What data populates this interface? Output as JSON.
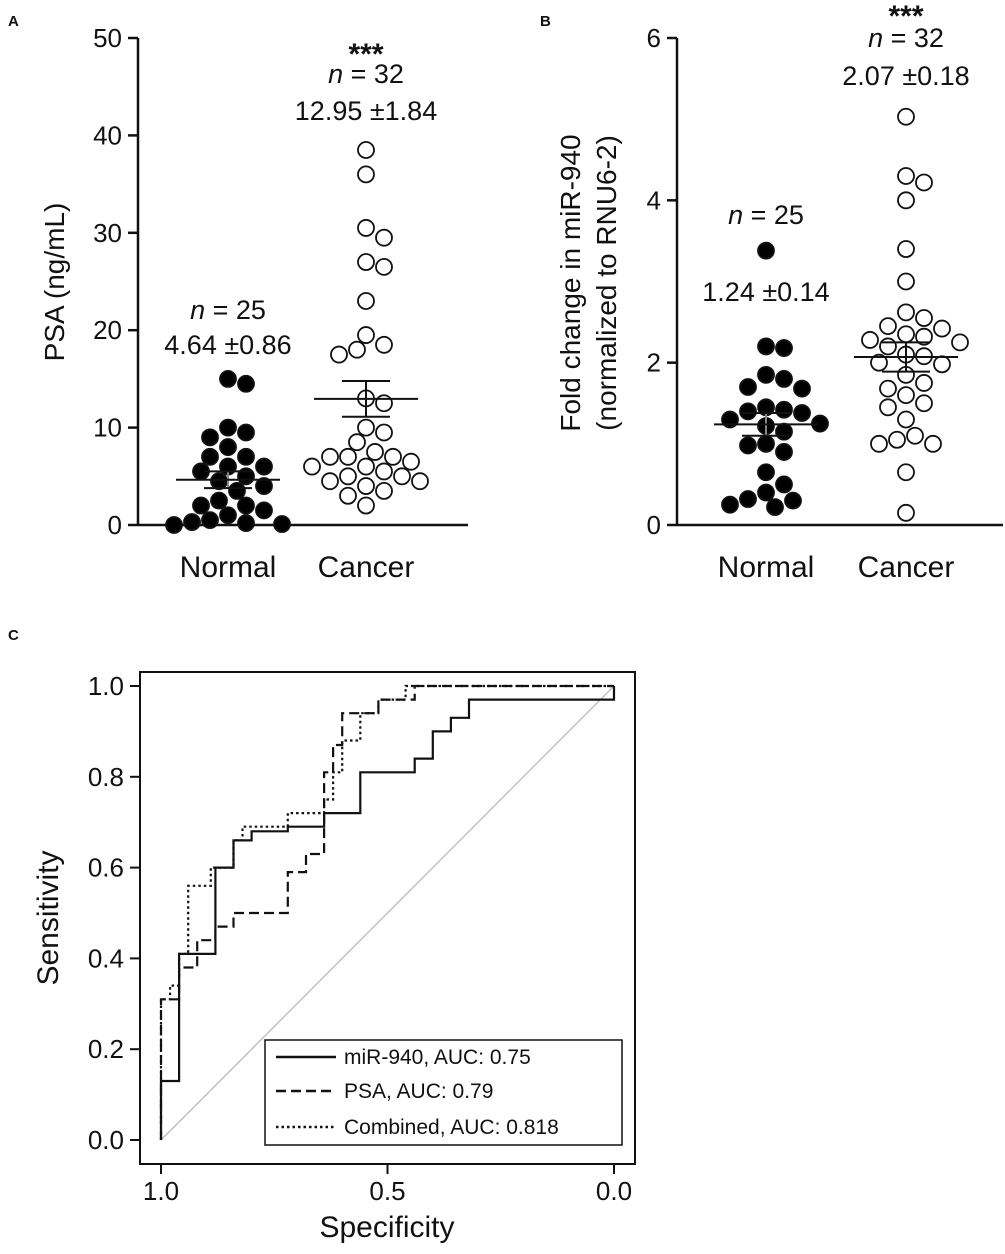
{
  "chart_data": [
    {
      "panel": "A",
      "type": "scatter",
      "ylabel": "PSA (ng/mL)",
      "ylim": [
        0,
        50
      ],
      "yticks": [
        0,
        10,
        20,
        30,
        40,
        50
      ],
      "categories": [
        "Normal",
        "Cancer"
      ],
      "groups": [
        {
          "name": "Normal",
          "n_label": "n",
          "n_rest": " = 25",
          "stat_label": "4.64 ±0.86",
          "mean": 4.64,
          "sem": 0.86,
          "fill": "#000000",
          "values": [
            15.0,
            14.5,
            10.0,
            9.5,
            9.0,
            8.0,
            7.0,
            7.0,
            6.0,
            6.0,
            5.5,
            5.0,
            4.5,
            4.0,
            3.5,
            2.5,
            2.0,
            2.0,
            1.5,
            1.0,
            0.5,
            0.3,
            0.2,
            0.1,
            0.0
          ]
        },
        {
          "name": "Cancer",
          "stars": "***",
          "n_label": "n",
          "n_rest": " = 32",
          "stat_label": "12.95 ±1.84",
          "mean": 12.95,
          "sem": 1.84,
          "fill": "#ffffff",
          "values": [
            38.5,
            36.0,
            30.5,
            29.5,
            27.0,
            26.5,
            23.0,
            19.5,
            18.5,
            18.0,
            17.5,
            13.0,
            12.5,
            10.0,
            9.5,
            8.5,
            7.5,
            7.0,
            7.0,
            7.0,
            6.5,
            6.0,
            6.0,
            5.5,
            5.0,
            5.0,
            4.5,
            4.5,
            4.0,
            3.5,
            3.0,
            2.0
          ]
        }
      ]
    },
    {
      "panel": "B",
      "type": "scatter",
      "ylabel": "Fold change in miR-940",
      "ylabel2": "(normalized to RNU6-2)",
      "ylim": [
        0,
        6
      ],
      "yticks": [
        0,
        2,
        4,
        6
      ],
      "categories": [
        "Normal",
        "Cancer"
      ],
      "groups": [
        {
          "name": "Normal",
          "n_label": "n",
          "n_rest": " = 25",
          "stat_label": "1.24 ±0.14",
          "mean": 1.24,
          "sem": 0.14,
          "fill": "#000000",
          "values": [
            3.38,
            2.2,
            2.18,
            1.85,
            1.8,
            1.7,
            1.68,
            1.45,
            1.42,
            1.4,
            1.38,
            1.3,
            1.25,
            1.22,
            1.15,
            1.0,
            0.98,
            0.9,
            0.65,
            0.5,
            0.4,
            0.32,
            0.3,
            0.25,
            0.22
          ]
        },
        {
          "name": "Cancer",
          "stars": "***",
          "n_label": "n",
          "n_rest": " = 32",
          "stat_label": "2.07 ±0.18",
          "mean": 2.07,
          "sem": 0.18,
          "fill": "#ffffff",
          "values": [
            5.03,
            4.3,
            4.22,
            4.0,
            3.4,
            3.0,
            2.62,
            2.55,
            2.45,
            2.42,
            2.35,
            2.32,
            2.28,
            2.25,
            2.2,
            2.1,
            2.08,
            2.0,
            1.98,
            1.85,
            1.75,
            1.68,
            1.6,
            1.5,
            1.45,
            1.3,
            1.1,
            1.05,
            1.0,
            1.0,
            0.65,
            0.15
          ]
        }
      ]
    },
    {
      "panel": "C",
      "type": "line",
      "xlabel": "Specificity",
      "ylabel": "Sensitivity",
      "xlim": [
        1.0,
        0.0
      ],
      "ylim": [
        0.0,
        1.0
      ],
      "xticks": [
        "1.0",
        "0.5",
        "0.0"
      ],
      "yticks": [
        "0.0",
        "0.2",
        "0.4",
        "0.6",
        "0.8",
        "1.0"
      ],
      "series": [
        {
          "name": "miR-940",
          "legend": "miR-940, AUC: 0.75",
          "auc": 0.75,
          "style": "solid",
          "points": [
            [
              1.0,
              0.0
            ],
            [
              1.0,
              0.13
            ],
            [
              0.96,
              0.13
            ],
            [
              0.96,
              0.41
            ],
            [
              0.88,
              0.41
            ],
            [
              0.88,
              0.6
            ],
            [
              0.84,
              0.6
            ],
            [
              0.84,
              0.66
            ],
            [
              0.8,
              0.66
            ],
            [
              0.8,
              0.68
            ],
            [
              0.72,
              0.68
            ],
            [
              0.72,
              0.69
            ],
            [
              0.64,
              0.69
            ],
            [
              0.64,
              0.72
            ],
            [
              0.56,
              0.72
            ],
            [
              0.56,
              0.81
            ],
            [
              0.44,
              0.81
            ],
            [
              0.44,
              0.84
            ],
            [
              0.4,
              0.84
            ],
            [
              0.4,
              0.9
            ],
            [
              0.36,
              0.9
            ],
            [
              0.36,
              0.93
            ],
            [
              0.32,
              0.93
            ],
            [
              0.32,
              0.97
            ],
            [
              0.0,
              0.97
            ],
            [
              0.0,
              1.0
            ]
          ]
        },
        {
          "name": "PSA",
          "legend": "PSA, AUC: 0.79",
          "auc": 0.79,
          "style": "dashed",
          "points": [
            [
              1.0,
              0.0
            ],
            [
              1.0,
              0.31
            ],
            [
              0.96,
              0.31
            ],
            [
              0.96,
              0.38
            ],
            [
              0.92,
              0.38
            ],
            [
              0.92,
              0.44
            ],
            [
              0.88,
              0.44
            ],
            [
              0.88,
              0.47
            ],
            [
              0.84,
              0.47
            ],
            [
              0.84,
              0.5
            ],
            [
              0.72,
              0.5
            ],
            [
              0.72,
              0.59
            ],
            [
              0.68,
              0.59
            ],
            [
              0.68,
              0.63
            ],
            [
              0.64,
              0.63
            ],
            [
              0.64,
              0.81
            ],
            [
              0.62,
              0.81
            ],
            [
              0.62,
              0.87
            ],
            [
              0.6,
              0.87
            ],
            [
              0.6,
              0.94
            ],
            [
              0.52,
              0.94
            ],
            [
              0.52,
              0.97
            ],
            [
              0.44,
              0.97
            ],
            [
              0.44,
              1.0
            ],
            [
              0.0,
              1.0
            ]
          ]
        },
        {
          "name": "Combined",
          "legend": "Combined, AUC: 0.818",
          "auc": 0.818,
          "style": "dotted",
          "points": [
            [
              1.0,
              0.0
            ],
            [
              1.0,
              0.31
            ],
            [
              0.98,
              0.31
            ],
            [
              0.98,
              0.34
            ],
            [
              0.96,
              0.34
            ],
            [
              0.96,
              0.41
            ],
            [
              0.94,
              0.41
            ],
            [
              0.94,
              0.56
            ],
            [
              0.89,
              0.56
            ],
            [
              0.89,
              0.6
            ],
            [
              0.84,
              0.6
            ],
            [
              0.84,
              0.66
            ],
            [
              0.82,
              0.66
            ],
            [
              0.82,
              0.69
            ],
            [
              0.72,
              0.69
            ],
            [
              0.72,
              0.72
            ],
            [
              0.64,
              0.72
            ],
            [
              0.64,
              0.75
            ],
            [
              0.62,
              0.75
            ],
            [
              0.62,
              0.81
            ],
            [
              0.6,
              0.81
            ],
            [
              0.6,
              0.88
            ],
            [
              0.56,
              0.88
            ],
            [
              0.56,
              0.94
            ],
            [
              0.52,
              0.94
            ],
            [
              0.52,
              0.97
            ],
            [
              0.46,
              0.97
            ],
            [
              0.46,
              1.0
            ],
            [
              0.0,
              1.0
            ]
          ]
        }
      ]
    }
  ]
}
